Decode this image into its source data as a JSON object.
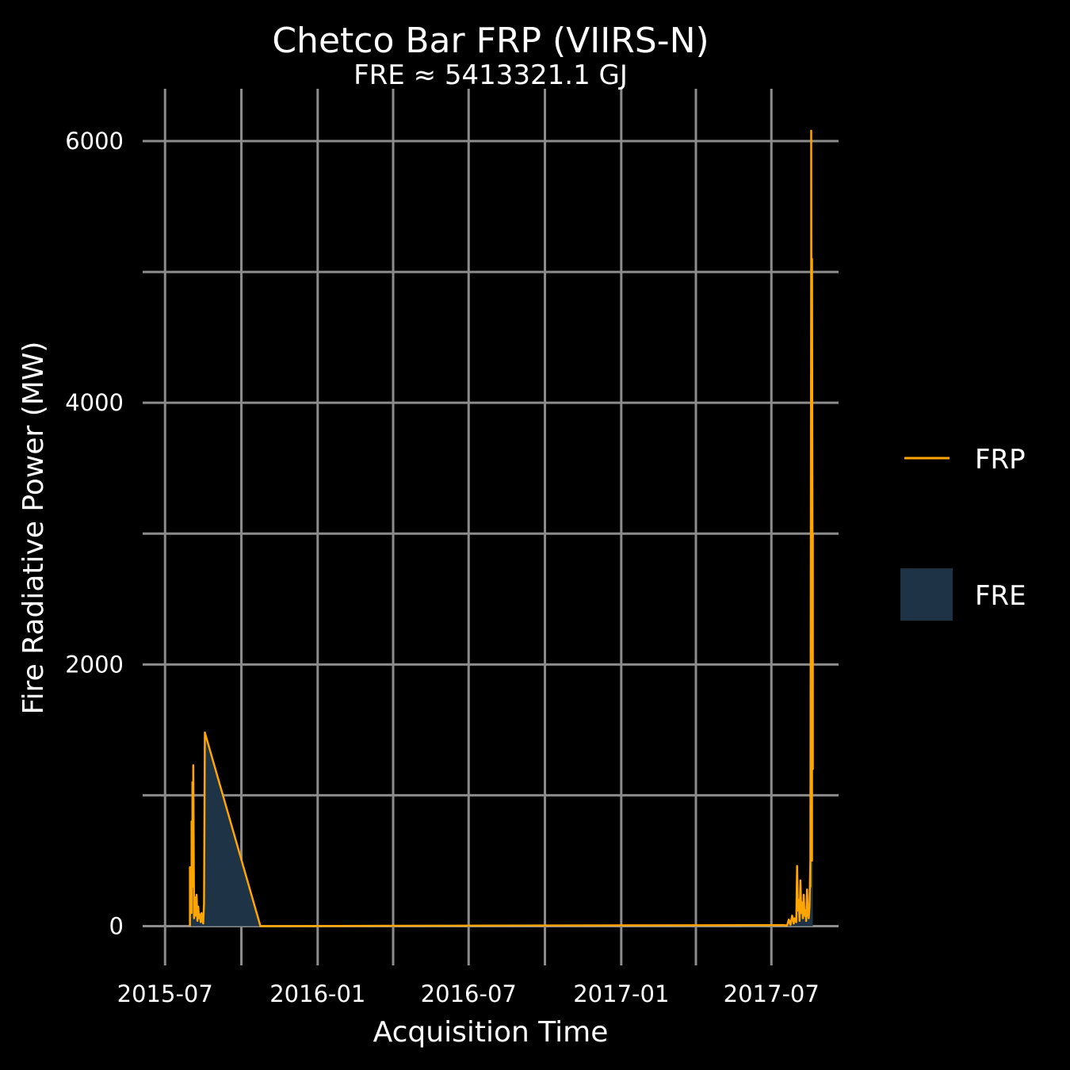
{
  "chart_data": {
    "type": "line",
    "title": "Chetco Bar FRP (VIIRS-N)",
    "subtitle": "FRE ≈ 5413321.1 GJ",
    "xlabel": "Acquisition Time",
    "ylabel": "Fire Radiative Power (MW)",
    "x_ticks": [
      "2015-07-01",
      "2016-01-01",
      "2016-07-01",
      "2017-01-01",
      "2017-07-01"
    ],
    "x_tick_labels": [
      "2015-07",
      "2016-01",
      "2016-07",
      "2017-01",
      "2017-07"
    ],
    "x_minor_ticks": [
      "2015-10-01",
      "2016-04-01",
      "2016-10-01",
      "2017-04-01"
    ],
    "xlim": [
      "2015-06-04",
      "2017-09-20"
    ],
    "y_ticks": [
      0,
      2000,
      4000,
      6000
    ],
    "y_minor_ticks": [
      1000,
      3000,
      5000
    ],
    "ylim": [
      -300,
      6400
    ],
    "grid": true,
    "legend": {
      "position": "right",
      "entries": [
        {
          "label": "FRP",
          "kind": "line",
          "color": "#FFA500"
        },
        {
          "label": "FRE",
          "kind": "fill",
          "color": "#1F3347"
        }
      ]
    },
    "series": [
      {
        "name": "FRP",
        "color": "#FFA500",
        "fill_color": "#1F3347",
        "points": [
          [
            "2015-07-31",
            0
          ],
          [
            "2015-07-31",
            450
          ],
          [
            "2015-08-01",
            200
          ],
          [
            "2015-08-01",
            420
          ],
          [
            "2015-08-02",
            100
          ],
          [
            "2015-08-02",
            800
          ],
          [
            "2015-08-03",
            300
          ],
          [
            "2015-08-03",
            1100
          ],
          [
            "2015-08-04",
            500
          ],
          [
            "2015-08-04",
            1230
          ],
          [
            "2015-08-05",
            60
          ],
          [
            "2015-08-06",
            220
          ],
          [
            "2015-08-07",
            80
          ],
          [
            "2015-08-08",
            240
          ],
          [
            "2015-08-09",
            40
          ],
          [
            "2015-08-10",
            150
          ],
          [
            "2015-08-11",
            60
          ],
          [
            "2015-08-12",
            90
          ],
          [
            "2015-08-13",
            30
          ],
          [
            "2015-08-14",
            100
          ],
          [
            "2015-08-15",
            40
          ],
          [
            "2015-08-16",
            20
          ],
          [
            "2015-08-17",
            180
          ],
          [
            "2015-08-18",
            1480
          ],
          [
            "2015-10-24",
            0
          ],
          [
            "2016-04-01",
            3
          ],
          [
            "2017-07-15",
            8
          ],
          [
            "2017-07-20",
            5
          ],
          [
            "2017-07-22",
            50
          ],
          [
            "2017-07-24",
            10
          ],
          [
            "2017-07-26",
            80
          ],
          [
            "2017-07-28",
            20
          ],
          [
            "2017-07-29",
            60
          ],
          [
            "2017-07-31",
            30
          ],
          [
            "2017-08-01",
            460
          ],
          [
            "2017-08-02",
            120
          ],
          [
            "2017-08-03",
            200
          ],
          [
            "2017-08-04",
            40
          ],
          [
            "2017-08-05",
            350
          ],
          [
            "2017-08-06",
            100
          ],
          [
            "2017-08-07",
            180
          ],
          [
            "2017-08-08",
            60
          ],
          [
            "2017-08-09",
            240
          ],
          [
            "2017-08-10",
            80
          ],
          [
            "2017-08-11",
            120
          ],
          [
            "2017-08-12",
            40
          ],
          [
            "2017-08-13",
            280
          ],
          [
            "2017-08-14",
            100
          ],
          [
            "2017-08-15",
            60
          ],
          [
            "2017-08-16",
            150
          ],
          [
            "2017-08-17",
            500
          ],
          [
            "2017-08-17",
            300
          ],
          [
            "2017-08-18",
            5100
          ],
          [
            "2017-08-18",
            3000
          ],
          [
            "2017-08-18",
            6080
          ],
          [
            "2017-08-19",
            500
          ],
          [
            "2017-08-19",
            5100
          ],
          [
            "2017-08-20",
            1200
          ],
          [
            "2017-08-20",
            3000
          ]
        ]
      }
    ]
  }
}
